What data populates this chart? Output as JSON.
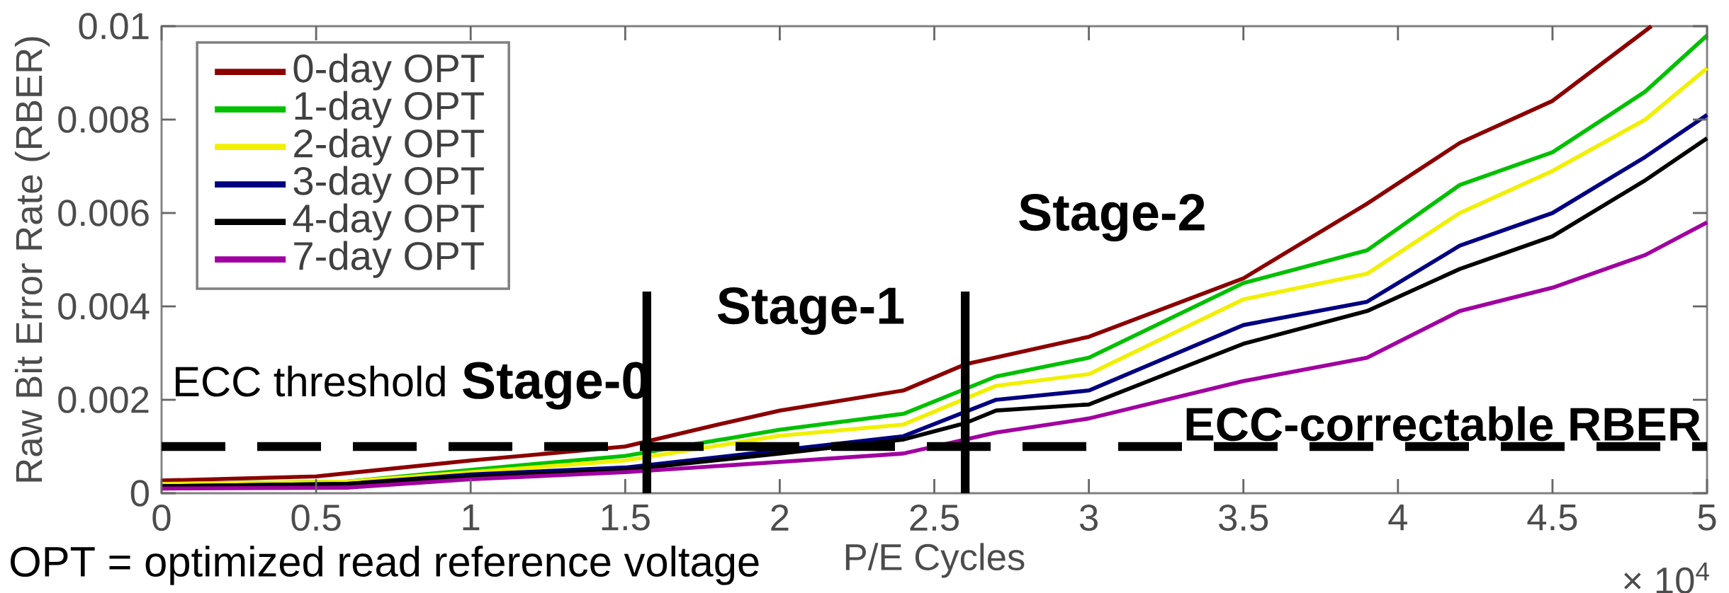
{
  "chart_data": {
    "type": "line",
    "xlabel": "P/E Cycles",
    "ylabel": "Raw Bit Error Rate (RBER)",
    "x": [
      0,
      0.6,
      1,
      1.5,
      2,
      2.4,
      2.6,
      2.7,
      3,
      3.5,
      3.9,
      4.2,
      4.5,
      4.8,
      5
    ],
    "series": [
      {
        "name": "0-day OPT",
        "color": "#8b0000",
        "x": [
          0,
          0.5,
          1,
          1.5,
          1.8,
          2,
          2.4,
          2.6,
          2.7,
          3,
          3.5,
          3.9,
          4.2,
          4.5,
          4.82
        ],
        "values": [
          0.00027,
          0.00036,
          0.0007,
          0.001,
          0.00147,
          0.00177,
          0.0022,
          0.00276,
          null,
          0.00335,
          0.0046,
          0.0062,
          0.0075,
          0.0084,
          0.01
        ]
      },
      {
        "name": "1-day OPT",
        "color": "#00c000",
        "values": [
          0.0002,
          0.00025,
          0.0005,
          0.0008,
          0.00136,
          0.0017,
          null,
          0.0025,
          0.0029,
          0.0045,
          0.0052,
          0.0066,
          0.0073,
          0.0086,
          0.0098
        ]
      },
      {
        "name": "2-day OPT",
        "color": "#f0f000",
        "values": [
          0.0002,
          0.00025,
          0.00045,
          0.0007,
          0.00123,
          0.00147,
          null,
          0.0023,
          0.00255,
          0.00415,
          0.0047,
          0.006,
          0.0069,
          0.008,
          0.0091
        ]
      },
      {
        "name": "3-day OPT",
        "color": "#000080",
        "values": [
          0.00015,
          0.0002,
          0.0004,
          0.00055,
          0.00092,
          0.00122,
          null,
          0.002,
          0.0022,
          0.0036,
          0.0041,
          0.0053,
          0.006,
          0.0072,
          0.0081
        ]
      },
      {
        "name": "4-day OPT",
        "color": "#000000",
        "values": [
          0.00015,
          0.0002,
          0.00035,
          0.0005,
          0.00085,
          0.00115,
          0.0015,
          0.00177,
          0.0019,
          0.0032,
          0.0039,
          0.0048,
          0.0055,
          0.0067,
          0.0076
        ]
      },
      {
        "name": "7-day OPT",
        "color": "#a000a0",
        "values": [
          0.0001,
          0.00012,
          0.0003,
          0.00045,
          0.00067,
          0.00085,
          null,
          0.0013,
          0.0016,
          0.0024,
          0.0029,
          0.0039,
          0.0044,
          0.0051,
          0.0058
        ]
      }
    ],
    "xlim": [
      0,
      5
    ],
    "xticks": [
      0,
      0.5,
      1,
      1.5,
      2,
      2.5,
      3,
      3.5,
      4,
      4.5,
      5
    ],
    "ylim": [
      0,
      0.01
    ],
    "yticks": [
      0,
      0.002,
      0.004,
      0.006,
      0.008,
      0.01
    ],
    "ref_lines": [
      {
        "axis": "y",
        "value": 0.001,
        "label": "ECC-correctable RBER",
        "color": "#000000",
        "line_style": "dashed"
      },
      {
        "axis": "x",
        "value": 1.57,
        "color": "#000000",
        "line_style": "solid"
      },
      {
        "axis": "x",
        "value": 2.6,
        "color": "#000000",
        "line_style": "solid"
      }
    ],
    "annotations": [
      "ECC threshold",
      "Stage-0",
      "Stage-1",
      "Stage-2",
      "OPT = optimized read reference voltage",
      "× 10$^{4}$"
    ],
    "legend": "top left",
    "grid": false,
    "marker": "none",
    "line_style": "solid"
  }
}
